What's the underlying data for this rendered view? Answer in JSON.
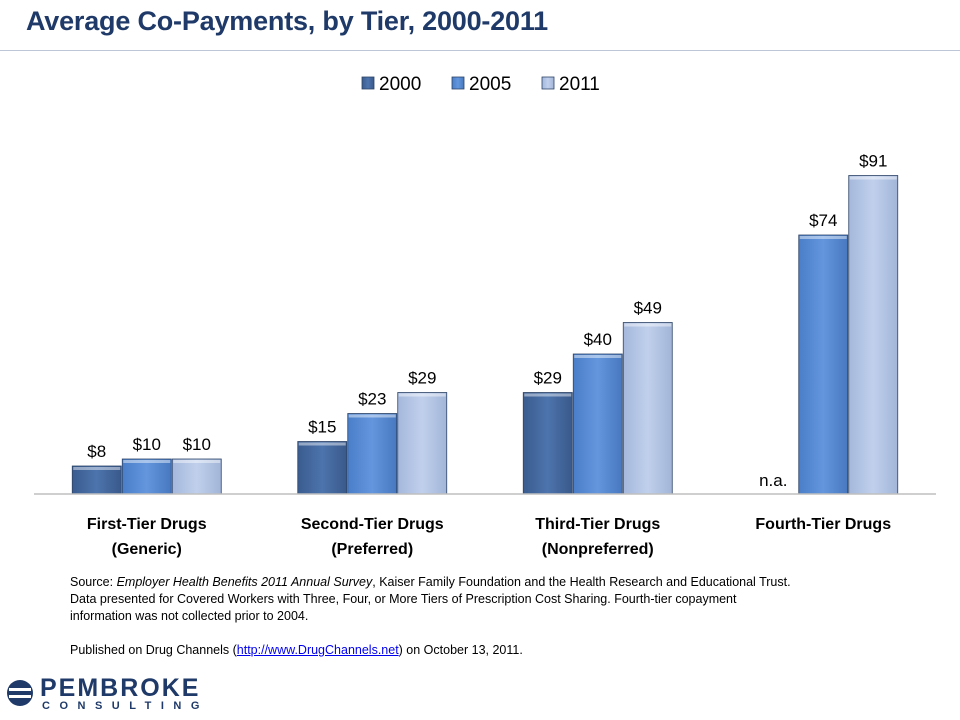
{
  "title": "Average Co-Payments, by Tier, 2000-2011",
  "chart_data": {
    "type": "bar",
    "categories": [
      [
        "First-Tier Drugs",
        "(Generic)"
      ],
      [
        "Second-Tier Drugs",
        "(Preferred)"
      ],
      [
        "Third-Tier Drugs",
        "(Nonpreferred)"
      ],
      [
        "Fourth-Tier Drugs"
      ]
    ],
    "series": [
      {
        "name": "2000",
        "values": [
          8,
          15,
          29,
          null
        ],
        "labels": [
          "$8",
          "$15",
          "$29",
          "n.a."
        ],
        "color": "#4a6fa5"
      },
      {
        "name": "2005",
        "values": [
          10,
          23,
          40,
          74
        ],
        "labels": [
          "$10",
          "$23",
          "$40",
          "$74"
        ],
        "color": "#5b8fd6"
      },
      {
        "name": "2011",
        "values": [
          10,
          29,
          49,
          91
        ],
        "labels": [
          "$10",
          "$29",
          "$49",
          "$91"
        ],
        "color": "#b4c6e6"
      }
    ],
    "ylim": [
      0,
      100
    ],
    "grid": false,
    "legend_position": "top-center"
  },
  "source": {
    "prefix": "Source: ",
    "survey": "Employer Health Benefits 2011  Annual Survey",
    "rest": ", Kaiser Family Foundation and the Health Research and Educational Trust.",
    "line2": "Data presented for Covered Workers with Three, Four, or More Tiers of Prescription Cost Sharing. Fourth-tier copayment",
    "line3": "information was not collected prior to 2004.",
    "pub_prefix": "Published on Drug Channels (",
    "pub_link": "http://www.DrugChannels.net",
    "pub_suffix": ") on October 13, 2011."
  },
  "logo": {
    "name": "PEMBROKE",
    "sub": "CONSULTING"
  }
}
